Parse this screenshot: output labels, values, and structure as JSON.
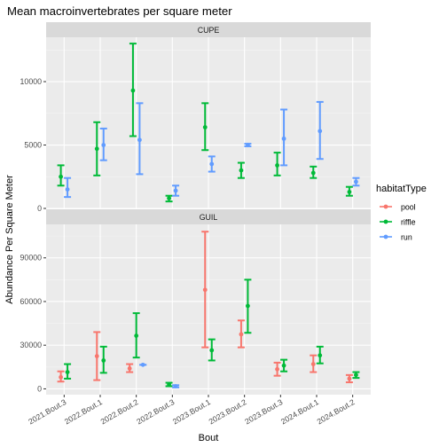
{
  "chart_data": {
    "type": "scatter",
    "title": "Mean macroinvertebrates per square meter",
    "xlabel": "Bout",
    "ylabel": "Abundance Per Square Meter",
    "categories": [
      "2021.Bout.3",
      "2022.Bout.1",
      "2022.Bout.2",
      "2022.Bout.3",
      "2023.Bout.1",
      "2023.Bout.2",
      "2023.Bout.3",
      "2024.Bout.1",
      "2024.Bout.2"
    ],
    "legend": {
      "title": "habitatType",
      "position": "right",
      "entries": [
        {
          "name": "pool",
          "color": "#F8766D"
        },
        {
          "name": "riffle",
          "color": "#00BA38"
        },
        {
          "name": "run",
          "color": "#619CFF"
        }
      ]
    },
    "grid": true,
    "panels": [
      {
        "label": "CUPE",
        "ylim": [
          0,
          13500
        ],
        "yticks": [
          0,
          5000,
          10000
        ],
        "ytick_labels": [
          "0",
          "5000",
          "10000"
        ],
        "points": [
          {
            "category": "2021.Bout.3",
            "series": "riffle",
            "mean": 2500,
            "lo": 1800,
            "hi": 3400
          },
          {
            "category": "2021.Bout.3",
            "series": "run",
            "mean": 1500,
            "lo": 900,
            "hi": 2400
          },
          {
            "category": "2022.Bout.1",
            "series": "riffle",
            "mean": 4700,
            "lo": 2600,
            "hi": 6800
          },
          {
            "category": "2022.Bout.1",
            "series": "run",
            "mean": 5000,
            "lo": 3800,
            "hi": 6300
          },
          {
            "category": "2022.Bout.2",
            "series": "riffle",
            "mean": 9300,
            "lo": 5700,
            "hi": 13000
          },
          {
            "category": "2022.Bout.2",
            "series": "run",
            "mean": 5400,
            "lo": 2700,
            "hi": 8300
          },
          {
            "category": "2022.Bout.3",
            "series": "riffle",
            "mean": 800,
            "lo": 550,
            "hi": 1000
          },
          {
            "category": "2022.Bout.3",
            "series": "run",
            "mean": 1400,
            "lo": 1000,
            "hi": 1800
          },
          {
            "category": "2023.Bout.1",
            "series": "riffle",
            "mean": 6400,
            "lo": 4600,
            "hi": 8300
          },
          {
            "category": "2023.Bout.1",
            "series": "run",
            "mean": 3500,
            "lo": 2900,
            "hi": 4100
          },
          {
            "category": "2023.Bout.2",
            "series": "riffle",
            "mean": 3000,
            "lo": 2400,
            "hi": 3600
          },
          {
            "category": "2023.Bout.2",
            "series": "run",
            "mean": 5000,
            "lo": 4900,
            "hi": 5100
          },
          {
            "category": "2023.Bout.3",
            "series": "riffle",
            "mean": 3400,
            "lo": 2600,
            "hi": 4400
          },
          {
            "category": "2023.Bout.3",
            "series": "run",
            "mean": 5500,
            "lo": 3400,
            "hi": 7800
          },
          {
            "category": "2024.Bout.1",
            "series": "riffle",
            "mean": 2800,
            "lo": 2400,
            "hi": 3300
          },
          {
            "category": "2024.Bout.1",
            "series": "run",
            "mean": 6100,
            "lo": 3900,
            "hi": 8400
          },
          {
            "category": "2024.Bout.2",
            "series": "riffle",
            "mean": 1300,
            "lo": 1000,
            "hi": 1700
          },
          {
            "category": "2024.Bout.2",
            "series": "run",
            "mean": 2100,
            "lo": 1800,
            "hi": 2400
          }
        ]
      },
      {
        "label": "GUIL",
        "ylim": [
          -4000,
          113000
        ],
        "yticks": [
          0,
          30000,
          60000,
          90000
        ],
        "ytick_labels": [
          "0",
          "30000",
          "60000",
          "90000"
        ],
        "points": [
          {
            "category": "2021.Bout.3",
            "series": "pool",
            "mean": 8000,
            "lo": 5000,
            "hi": 12000
          },
          {
            "category": "2021.Bout.3",
            "series": "riffle",
            "mean": 11500,
            "lo": 7000,
            "hi": 17000
          },
          {
            "category": "2022.Bout.1",
            "series": "pool",
            "mean": 22500,
            "lo": 6000,
            "hi": 39000
          },
          {
            "category": "2022.Bout.1",
            "series": "riffle",
            "mean": 19500,
            "lo": 11000,
            "hi": 29000
          },
          {
            "category": "2022.Bout.2",
            "series": "pool",
            "mean": 14000,
            "lo": 11500,
            "hi": 17000
          },
          {
            "category": "2022.Bout.2",
            "series": "riffle",
            "mean": 36500,
            "lo": 21500,
            "hi": 52000
          },
          {
            "category": "2022.Bout.2",
            "series": "run",
            "mean": 16500,
            "lo": 16500,
            "hi": 16500
          },
          {
            "category": "2022.Bout.3",
            "series": "riffle",
            "mean": 3000,
            "lo": 1800,
            "hi": 4200
          },
          {
            "category": "2022.Bout.3",
            "series": "run",
            "mean": 1800,
            "lo": 1000,
            "hi": 2500
          },
          {
            "category": "2023.Bout.1",
            "series": "pool",
            "mean": 68000,
            "lo": 28500,
            "hi": 108000
          },
          {
            "category": "2023.Bout.1",
            "series": "riffle",
            "mean": 26500,
            "lo": 19500,
            "hi": 34000
          },
          {
            "category": "2023.Bout.2",
            "series": "pool",
            "mean": 37500,
            "lo": 28500,
            "hi": 47000
          },
          {
            "category": "2023.Bout.2",
            "series": "riffle",
            "mean": 57000,
            "lo": 38500,
            "hi": 75000
          },
          {
            "category": "2023.Bout.3",
            "series": "pool",
            "mean": 13500,
            "lo": 9000,
            "hi": 18000
          },
          {
            "category": "2023.Bout.3",
            "series": "riffle",
            "mean": 16000,
            "lo": 12000,
            "hi": 20000
          },
          {
            "category": "2024.Bout.1",
            "series": "pool",
            "mean": 17000,
            "lo": 11500,
            "hi": 23000
          },
          {
            "category": "2024.Bout.1",
            "series": "riffle",
            "mean": 23000,
            "lo": 17500,
            "hi": 29000
          },
          {
            "category": "2024.Bout.2",
            "series": "pool",
            "mean": 7000,
            "lo": 4500,
            "hi": 9500
          },
          {
            "category": "2024.Bout.2",
            "series": "riffle",
            "mean": 9500,
            "lo": 7500,
            "hi": 11500
          }
        ]
      }
    ]
  }
}
